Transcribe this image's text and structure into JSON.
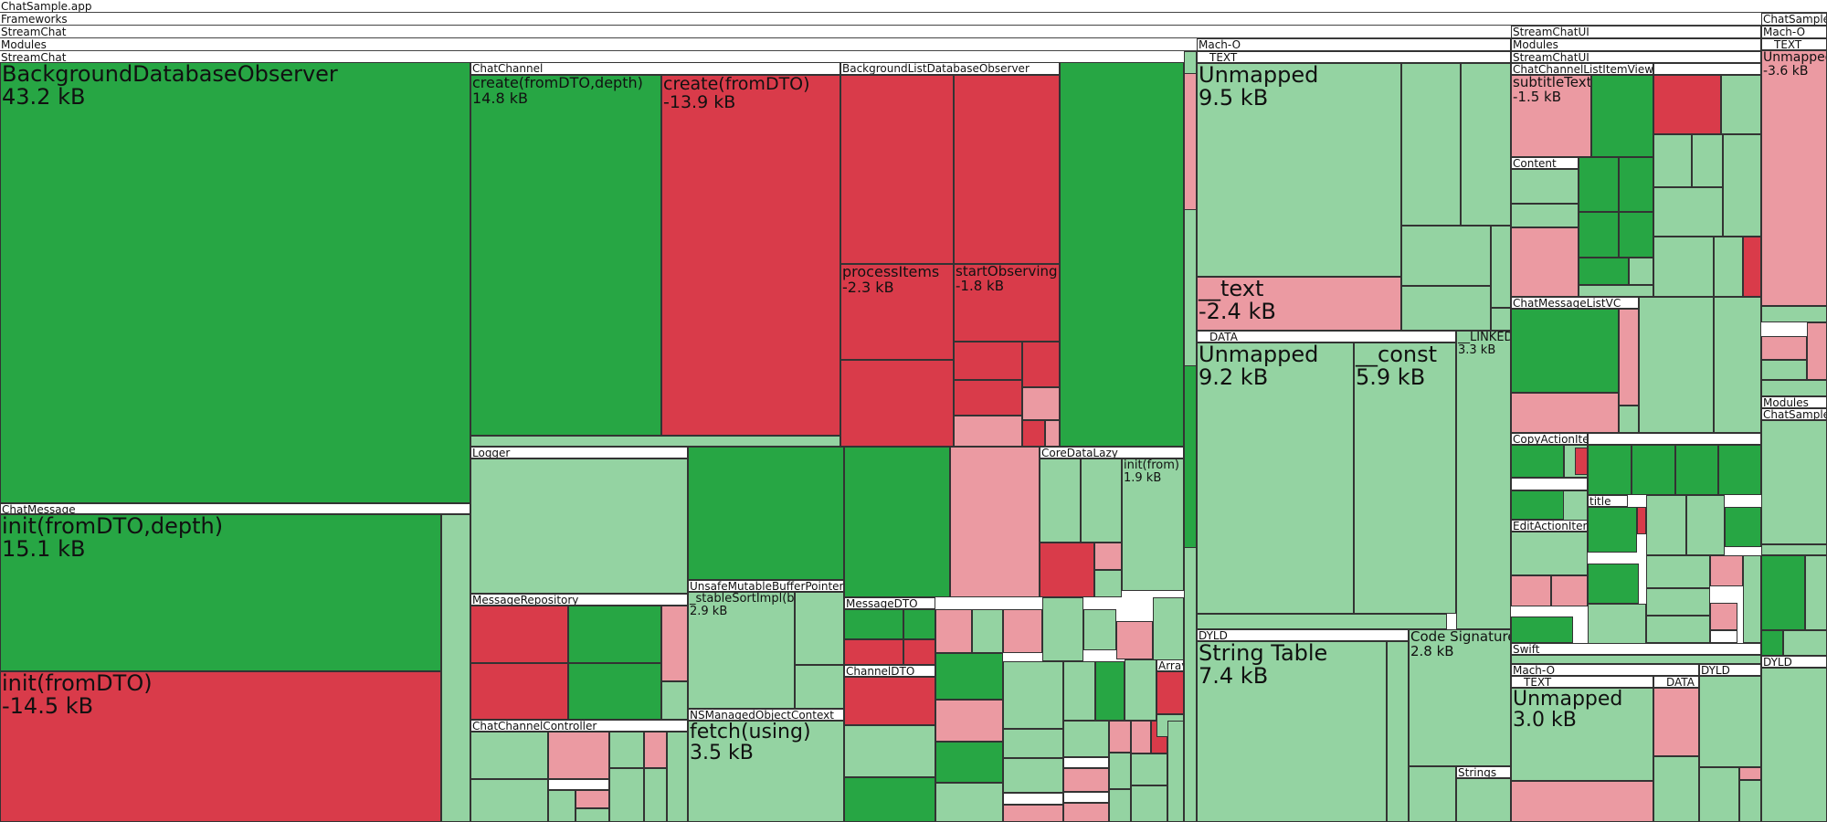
{
  "colors": {
    "grow_strong": "#27a644",
    "grow_light": "#94d3a2",
    "shrink_strong": "#d93b4a",
    "shrink_light": "#eb9aa2"
  },
  "breadcrumb": [
    "ChatSample.app",
    "Frameworks",
    "StreamChat",
    "Modules",
    "StreamChat"
  ],
  "streamchat": {
    "bg_observer": {
      "name": "BackgroundDatabaseObserver",
      "size": "43.2 kB"
    },
    "chat_message": {
      "name": "ChatMessage",
      "init_depth": {
        "name": "init(fromDTO,depth)",
        "size": "15.1 kB"
      },
      "init": {
        "name": "init(fromDTO)",
        "size": "-14.5 kB"
      }
    },
    "chat_channel": {
      "name": "ChatChannel",
      "create_depth": {
        "name": "create(fromDTO,depth)",
        "size": "14.8 kB"
      },
      "create": {
        "name": "create(fromDTO)",
        "size": "-13.9 kB"
      }
    },
    "bg_list": {
      "name": "BackgroundListDatabaseObserver",
      "process": {
        "name": "processItems",
        "size": "-2.3 kB"
      },
      "start": {
        "name": "startObserving",
        "size": "-1.8 kB"
      }
    },
    "logger": "Logger",
    "core_data_lazy": {
      "name": "CoreDataLazy",
      "init": "init(from)",
      "size": "1.9 kB"
    },
    "message_repository": "MessageRepository",
    "unsafe": {
      "name": "UnsafeMutableBufferPointer",
      "fn": "_stableSortImpl(by)",
      "size": "2.9 kB"
    },
    "message_dto": "MessageDTO",
    "channel_dto": "ChannelDTO",
    "array": "Array",
    "ns_context": {
      "name": "NSManagedObjectContext",
      "fn": "fetch(using)",
      "size": "3.5 kB"
    },
    "channel_controller": "ChatChannelController"
  },
  "macho": {
    "name": "Mach-O",
    "text": "__TEXT",
    "unmapped": {
      "name": "Unmapped",
      "size": "9.5 kB"
    },
    "text_sec": {
      "name": "__text",
      "size": "-2.4 kB"
    },
    "data": "__DATA",
    "data_unmapped": {
      "name": "Unmapped",
      "size": "9.2 kB"
    },
    "const": {
      "name": "__const",
      "size": "5.9 kB"
    },
    "linkedit": {
      "name": "__LINKEDIT",
      "size": "3.3 kB"
    },
    "dyld": "DYLD",
    "string_table": {
      "name": "String Table",
      "size": "7.4 kB"
    },
    "code_sig": {
      "name": "Code Signature",
      "size": "2.8 kB"
    },
    "strings": "Strings"
  },
  "streamchatui": {
    "crumbs": [
      "StreamChatUI",
      "Modules",
      "StreamChatUI"
    ],
    "list_item_view": "ChatChannelListItemView",
    "subtitle": {
      "name": "subtitleText",
      "size": "-1.5 kB"
    },
    "content": "Content",
    "msg_list_vc": "ChatMessageListVC",
    "copy_action": "CopyActionItem",
    "title": "title",
    "edit_action": "EditActionItem",
    "swift": "Swift",
    "macho": "Mach-O",
    "text": "__TEXT",
    "data": "__DATA",
    "dyld": "DYLD",
    "unmapped": {
      "name": "Unmapped",
      "size": "3.0 kB"
    }
  },
  "chatsample": {
    "crumbs": [
      "ChatSample",
      "Mach-O",
      "__TEXT"
    ],
    "unmapped": {
      "name": "Unmapped",
      "size": "-3.6 kB"
    },
    "modules": "Modules",
    "name2": "ChatSample",
    "dyld": "DYLD"
  }
}
